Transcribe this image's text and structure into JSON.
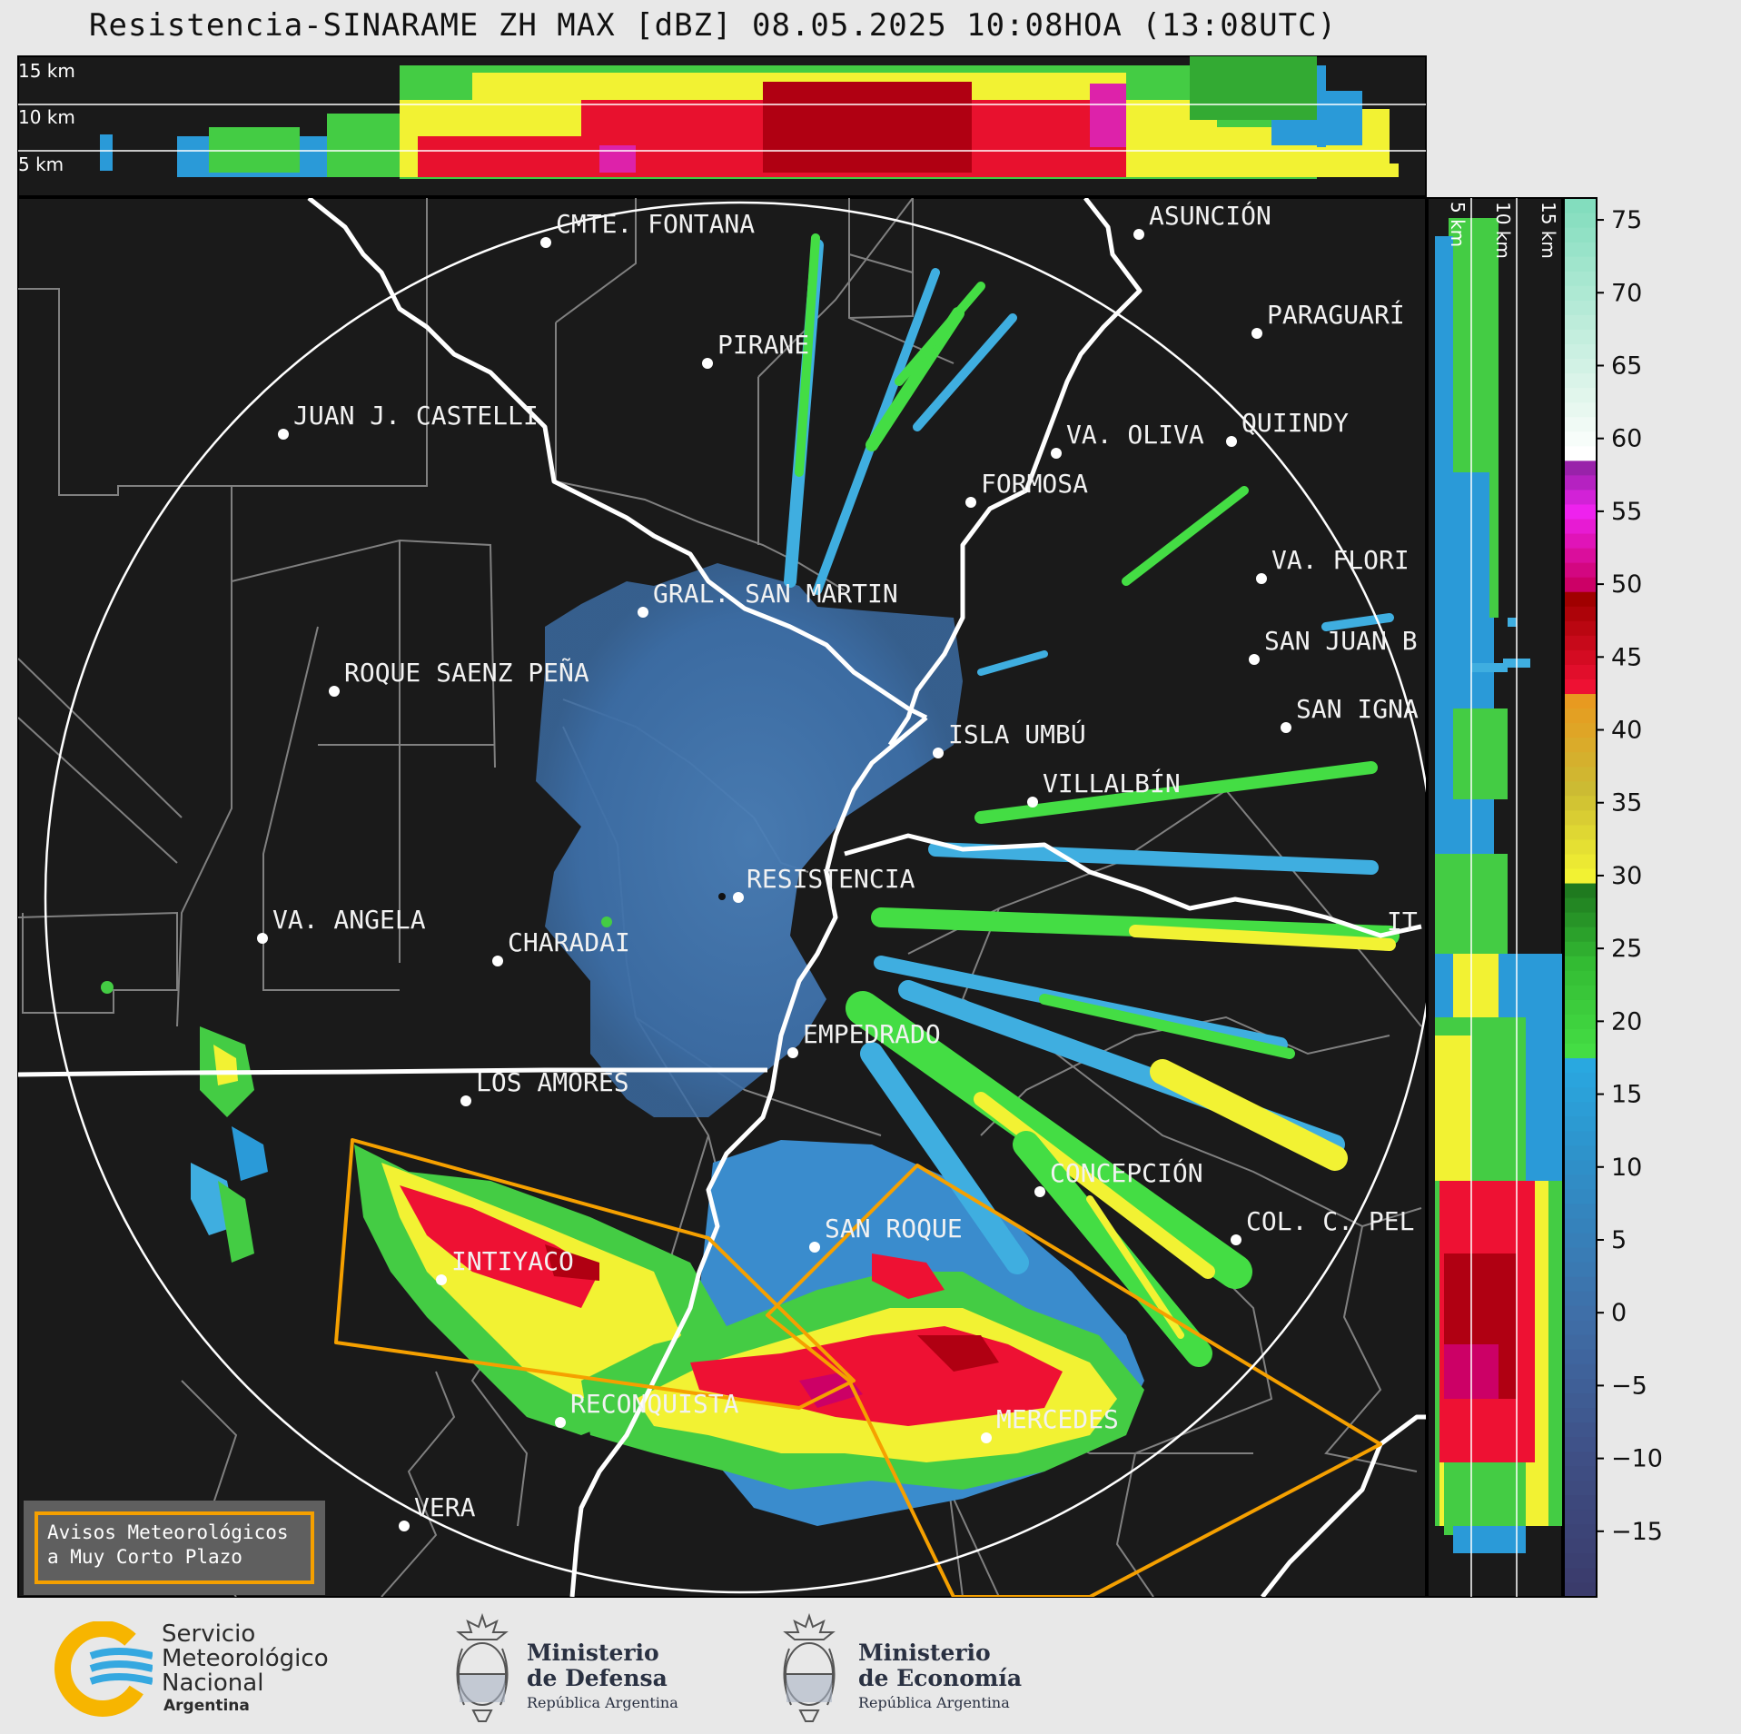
{
  "title": "Resistencia-SINARAME ZH MAX [dBZ] 08.05.2025 10:08HOA (13:08UTC)",
  "top_panel": {
    "height_labels": [
      "15 km",
      "10 km",
      "5 km"
    ]
  },
  "side_panel": {
    "height_labels": [
      "5 km",
      "10 km",
      "15 km"
    ]
  },
  "colorbar": {
    "ticks": [
      "75",
      "70",
      "65",
      "60",
      "55",
      "50",
      "45",
      "40",
      "35",
      "30",
      "25",
      "20",
      "15",
      "10",
      "5",
      "0",
      "−5",
      "−10",
      "−15"
    ],
    "values": [
      75,
      70,
      65,
      60,
      55,
      50,
      45,
      40,
      35,
      30,
      25,
      20,
      15,
      10,
      5,
      0,
      -5,
      -10,
      -15
    ],
    "range": [
      -19.5,
      76.5
    ],
    "stops": [
      {
        "v": -19.5,
        "c": "#3a3a6a"
      },
      {
        "v": -10,
        "c": "#3f4f85"
      },
      {
        "v": 0,
        "c": "#3f6fa8"
      },
      {
        "v": 10,
        "c": "#2f8fc8"
      },
      {
        "v": 17,
        "c": "#29a8e0"
      },
      {
        "v": 18,
        "c": "#44dd44"
      },
      {
        "v": 24,
        "c": "#33bb33"
      },
      {
        "v": 29,
        "c": "#1f7a1f"
      },
      {
        "v": 30,
        "c": "#f2f233"
      },
      {
        "v": 36,
        "c": "#ccbb33"
      },
      {
        "v": 42,
        "c": "#e89a20"
      },
      {
        "v": 43,
        "c": "#ee1133"
      },
      {
        "v": 49,
        "c": "#a00000"
      },
      {
        "v": 50,
        "c": "#cc0066"
      },
      {
        "v": 55,
        "c": "#ee22ee"
      },
      {
        "v": 58,
        "c": "#9922aa"
      },
      {
        "v": 59,
        "c": "#ffffff"
      },
      {
        "v": 62,
        "c": "#e8f8f0"
      },
      {
        "v": 76.5,
        "c": "#7fdcbc"
      }
    ]
  },
  "cities": [
    {
      "name": "CMTE. FONTANA"
    },
    {
      "name": "ASUNCIÓN"
    },
    {
      "name": "PIRANE"
    },
    {
      "name": "PARAGUARÍ"
    },
    {
      "name": "JUAN J. CASTELLI"
    },
    {
      "name": "VA. OLIVA"
    },
    {
      "name": "QUIINDY"
    },
    {
      "name": "FORMOSA"
    },
    {
      "name": "VA. FLORI"
    },
    {
      "name": "GRAL. SAN MARTIN"
    },
    {
      "name": "SAN JUAN B"
    },
    {
      "name": "ROQUE SAENZ PEÑA"
    },
    {
      "name": "SAN IGNA"
    },
    {
      "name": "ISLA UMBÚ"
    },
    {
      "name": "VILLALBÍN"
    },
    {
      "name": "RESISTENCIA"
    },
    {
      "name": "VA. ANGELA"
    },
    {
      "name": "CHARADAI"
    },
    {
      "name": "IT"
    },
    {
      "name": "EMPEDRADO"
    },
    {
      "name": "LOS AMORES"
    },
    {
      "name": "CONCEPCIÓN"
    },
    {
      "name": "SAN ROQUE"
    },
    {
      "name": "COL. C. PEL"
    },
    {
      "name": "INTIYACO"
    },
    {
      "name": "RECONQUISTA"
    },
    {
      "name": "MERCEDES"
    },
    {
      "name": "VERA"
    }
  ],
  "avisos": {
    "line1": "Avisos Meteorológicos",
    "line2": "a Muy Corto Plazo"
  },
  "logos": {
    "smn": {
      "line1": "Servicio",
      "line2": "Meteorológico",
      "line3": "Nacional",
      "line4": "Argentina"
    },
    "defensa": {
      "line1": "Ministerio",
      "line2": "de Defensa",
      "line3": "República Argentina"
    },
    "economia": {
      "line1": "Ministerio",
      "line2": "de Economía",
      "line3": "República Argentina"
    }
  },
  "colors": {
    "map_bg": "#1a1a1a",
    "warning_polygon": "#f5a000",
    "border": "#ffffff",
    "division": "#808080"
  }
}
